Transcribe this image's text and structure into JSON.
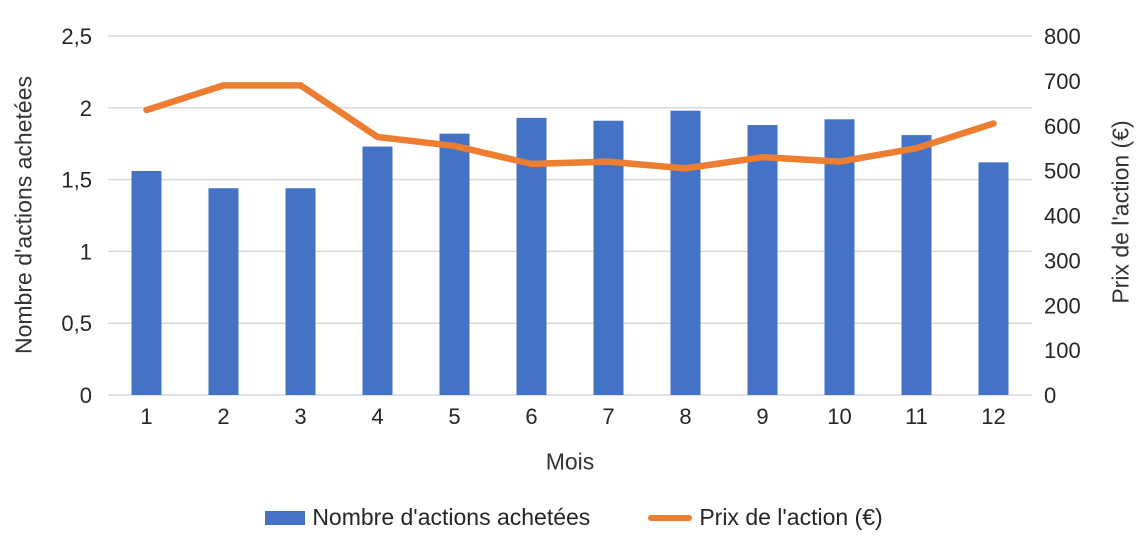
{
  "chart_data": {
    "type": "combo-bar-line",
    "categories": [
      "1",
      "2",
      "3",
      "4",
      "5",
      "6",
      "7",
      "8",
      "9",
      "10",
      "11",
      "12"
    ],
    "series": [
      {
        "name": "Nombre d'actions achetées",
        "type": "bar",
        "axis": "left",
        "color": "#4472C4",
        "values": [
          1.56,
          1.44,
          1.44,
          1.73,
          1.82,
          1.93,
          1.91,
          1.98,
          1.88,
          1.92,
          1.81,
          1.62
        ]
      },
      {
        "name": "Prix de l'action (€)",
        "type": "line",
        "axis": "right",
        "color": "#ED7D31",
        "values": [
          635,
          690,
          690,
          575,
          555,
          515,
          520,
          505,
          530,
          520,
          550,
          605
        ]
      }
    ],
    "left_axis": {
      "title": "Nombre d'actions achetées",
      "min": 0,
      "max": 2.5,
      "step": 0.5,
      "tick_labels": [
        "0",
        "0,5",
        "1",
        "1,5",
        "2",
        "2,5"
      ]
    },
    "right_axis": {
      "title": "Prix de l'action (€)",
      "min": 0,
      "max": 800,
      "step": 100,
      "tick_labels": [
        "0",
        "100",
        "200",
        "300",
        "400",
        "500",
        "600",
        "700",
        "800"
      ]
    },
    "x_axis": {
      "title": "Mois",
      "tick_labels": [
        "1",
        "2",
        "3",
        "4",
        "5",
        "6",
        "7",
        "8",
        "9",
        "10",
        "11",
        "12"
      ]
    },
    "grid": {
      "on": true,
      "color": "#D9D9D9"
    },
    "legend_position": "bottom"
  }
}
